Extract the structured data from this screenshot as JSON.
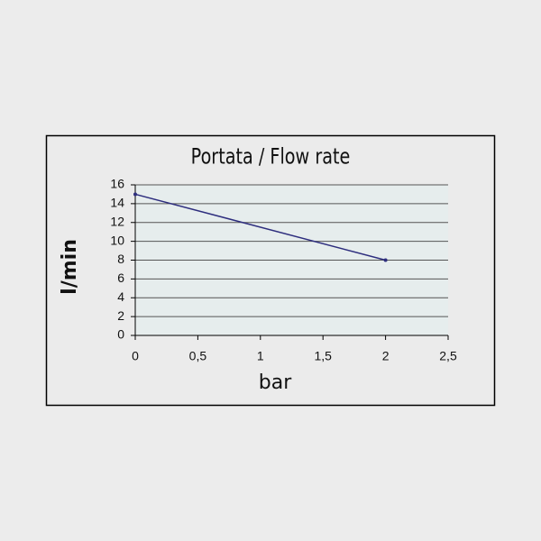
{
  "chart_data": {
    "type": "line",
    "title": "Portata / Flow rate",
    "x_label": "bar",
    "y_label": "l/min",
    "x": [
      0,
      2
    ],
    "series": [
      {
        "color": "#2e2e7e",
        "values": [
          15,
          8
        ]
      }
    ],
    "xlim": [
      0,
      2.5
    ],
    "xticks": [
      0,
      {
        "value": 0.5,
        "label": "0,5"
      },
      1,
      {
        "value": 1.5,
        "label": "1,5"
      },
      2,
      {
        "value": 2.5,
        "label": "2,5"
      }
    ],
    "ylim": [
      0,
      16
    ],
    "yticks": [
      0,
      2,
      4,
      6,
      8,
      10,
      12,
      14,
      16
    ],
    "grid": true
  }
}
